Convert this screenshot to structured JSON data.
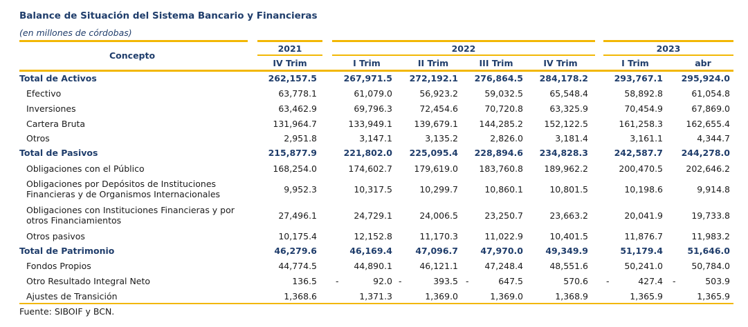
{
  "title": "Balance de Situación del Sistema Bancario y Financieras",
  "subtitle": "(en millones de córdobas)",
  "header": {
    "concept": "Concepto",
    "years": [
      "2021",
      "2022",
      "2023"
    ],
    "periods": [
      "IV Trim",
      "I Trim",
      "II Trim",
      "III Trim",
      "IV Trim",
      "I Trim",
      "abr"
    ]
  },
  "rows": [
    {
      "label": "Total de Activos",
      "total": true,
      "values": [
        "262,157.5",
        "267,971.5",
        "272,192.1",
        "276,864.5",
        "284,178.2",
        "293,767.1",
        "295,924.0"
      ]
    },
    {
      "label": "Efectivo",
      "values": [
        "63,778.1",
        "61,079.0",
        "56,923.2",
        "59,032.5",
        "65,548.4",
        "58,892.8",
        "61,054.8"
      ]
    },
    {
      "label": "Inversiones",
      "values": [
        "63,462.9",
        "69,796.3",
        "72,454.6",
        "70,720.8",
        "63,325.9",
        "70,454.9",
        "67,869.0"
      ]
    },
    {
      "label": "Cartera Bruta",
      "values": [
        "131,964.7",
        "133,949.1",
        "139,679.1",
        "144,285.2",
        "152,122.5",
        "161,258.3",
        "162,655.4"
      ]
    },
    {
      "label": "Otros",
      "values": [
        "2,951.8",
        "3,147.1",
        "3,135.2",
        "2,826.0",
        "3,181.4",
        "3,161.1",
        "4,344.7"
      ]
    },
    {
      "label": "Total de Pasivos",
      "total": true,
      "values": [
        "215,877.9",
        "221,802.0",
        "225,095.4",
        "228,894.6",
        "234,828.3",
        "242,587.7",
        "244,278.0"
      ]
    },
    {
      "label": "Obligaciones con el Público",
      "values": [
        "168,254.0",
        "174,602.7",
        "179,619.0",
        "183,760.8",
        "189,962.2",
        "200,470.5",
        "202,646.2"
      ]
    },
    {
      "label": "Obligaciones por Depósitos de Instituciones",
      "label2": "Financieras y de Organismos Internacionales",
      "values": [
        "9,952.3",
        "10,317.5",
        "10,299.7",
        "10,860.1",
        "10,801.5",
        "10,198.6",
        "9,914.8"
      ]
    },
    {
      "label": "Obligaciones con Instituciones Financieras y por",
      "label2": "otros Financiamientos",
      "values": [
        "27,496.1",
        "24,729.1",
        "24,006.5",
        "23,250.7",
        "23,663.2",
        "20,041.9",
        "19,733.8"
      ]
    },
    {
      "label": "Otros pasivos",
      "values": [
        "10,175.4",
        "12,152.8",
        "11,170.3",
        "11,022.9",
        "10,401.5",
        "11,876.7",
        "11,983.2"
      ]
    },
    {
      "label": "Total de Patrimonio",
      "total": true,
      "values": [
        "46,279.6",
        "46,169.4",
        "47,096.7",
        "47,970.0",
        "49,349.9",
        "51,179.4",
        "51,646.0"
      ]
    },
    {
      "label": "Fondos Propios",
      "values": [
        "44,774.5",
        "44,890.1",
        "46,121.1",
        "47,248.4",
        "48,551.6",
        "50,241.0",
        "50,784.0"
      ]
    },
    {
      "label": "Otro Resultado Integral Neto",
      "values": [
        "136.5",
        "92.0",
        "393.5",
        "647.5",
        "570.6",
        "427.4",
        "503.9"
      ],
      "neg": [
        "",
        "-",
        "-",
        "-",
        "-",
        "-",
        "-"
      ]
    },
    {
      "label": "Ajustes de Transición",
      "values": [
        "1,368.6",
        "1,371.3",
        "1,369.0",
        "1,369.0",
        "1,368.9",
        "1,365.9",
        "1,365.9"
      ]
    }
  ],
  "source": "Fuente: SIBOIF y BCN."
}
